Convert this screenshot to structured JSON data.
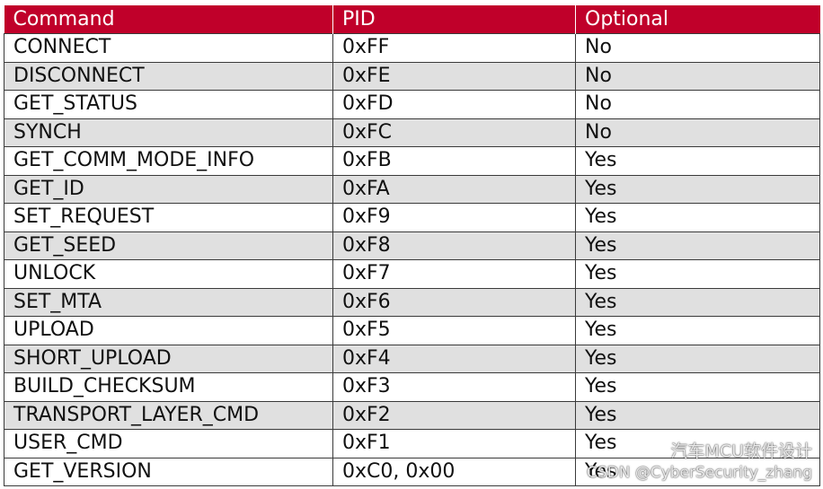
{
  "table": {
    "headers": [
      "Command",
      "PID",
      "Optional"
    ],
    "rows": [
      [
        "CONNECT",
        "0xFF",
        "No"
      ],
      [
        "DISCONNECT",
        "0xFE",
        "No"
      ],
      [
        "GET_STATUS",
        "0xFD",
        "No"
      ],
      [
        "SYNCH",
        "0xFC",
        "No"
      ],
      [
        "GET_COMM_MODE_INFO",
        "0xFB",
        "Yes"
      ],
      [
        "GET_ID",
        "0xFA",
        "Yes"
      ],
      [
        "SET_REQUEST",
        "0xF9",
        "Yes"
      ],
      [
        "GET_SEED",
        "0xF8",
        "Yes"
      ],
      [
        "UNLOCK",
        "0xF7",
        "Yes"
      ],
      [
        "SET_MTA",
        "0xF6",
        "Yes"
      ],
      [
        "UPLOAD",
        "0xF5",
        "Yes"
      ],
      [
        "SHORT_UPLOAD",
        "0xF4",
        "Yes"
      ],
      [
        "BUILD_CHECKSUM",
        "0xF3",
        "Yes"
      ],
      [
        "TRANSPORT_LAYER_CMD",
        "0xF2",
        "Yes"
      ],
      [
        "USER_CMD",
        "0xF1",
        "Yes"
      ],
      [
        "GET_VERSION",
        "0xC0, 0x00",
        "Yes"
      ]
    ]
  },
  "watermark": {
    "line1": "汽车MCU软件设计",
    "line2": "CSDN @CyberSecurity_zhang",
    "icon": "wechat-icon"
  },
  "colors": {
    "header_bg": "#c0002a",
    "alt_row_bg": "#e0e0e0"
  }
}
